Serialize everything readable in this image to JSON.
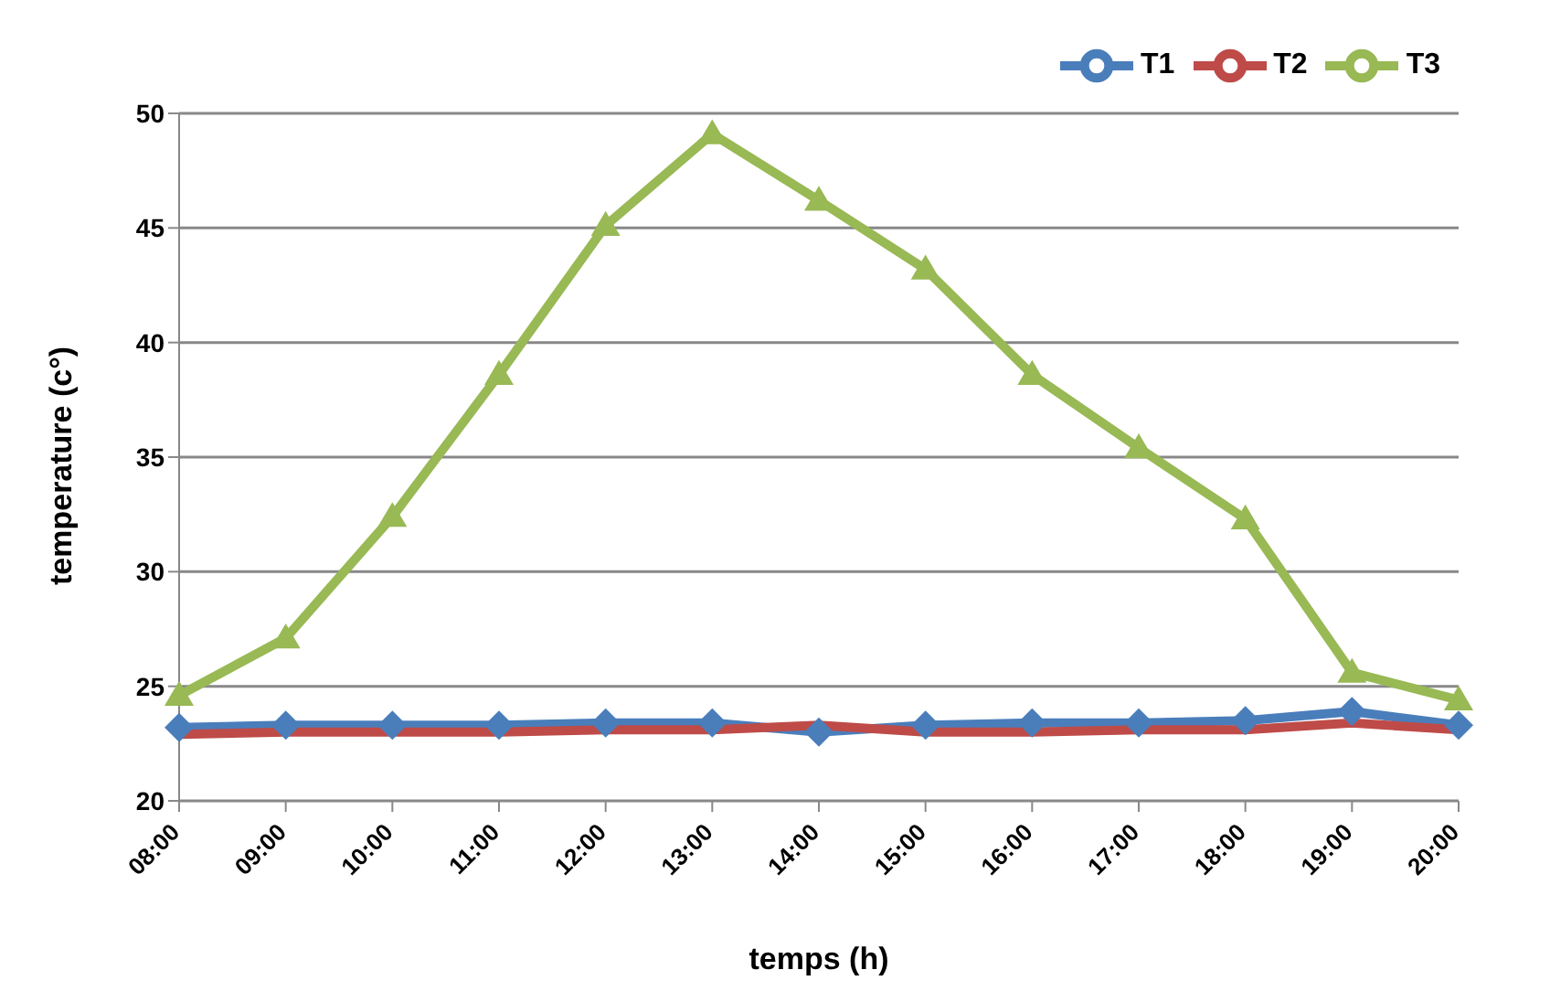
{
  "chart_data": {
    "type": "line",
    "xlabel": "temps (h)",
    "ylabel": "temperature (c°)",
    "categories": [
      "08:00",
      "09:00",
      "10:00",
      "11:00",
      "12:00",
      "13:00",
      "14:00",
      "15:00",
      "16:00",
      "17:00",
      "18:00",
      "19:00",
      "20:00"
    ],
    "series": [
      {
        "name": "T1",
        "color": "#4a7ebb",
        "marker": "diamond",
        "values": [
          23.2,
          23.3,
          23.3,
          23.3,
          23.4,
          23.4,
          23.0,
          23.3,
          23.4,
          23.4,
          23.5,
          23.9,
          23.3
        ]
      },
      {
        "name": "T2",
        "color": "#be4b48",
        "marker": "none",
        "values": [
          22.9,
          23.0,
          23.0,
          23.0,
          23.1,
          23.1,
          23.3,
          23.0,
          23.0,
          23.1,
          23.1,
          23.4,
          23.1
        ]
      },
      {
        "name": "T3",
        "color": "#98b954",
        "marker": "triangle",
        "values": [
          24.6,
          27.1,
          32.4,
          38.6,
          45.1,
          49.1,
          46.2,
          43.2,
          38.6,
          35.4,
          32.3,
          25.6,
          24.4
        ]
      }
    ],
    "ylim": [
      20,
      50
    ],
    "yticks": [
      20,
      25,
      30,
      35,
      40,
      45,
      50
    ],
    "grid": "y",
    "legend": "top right"
  }
}
